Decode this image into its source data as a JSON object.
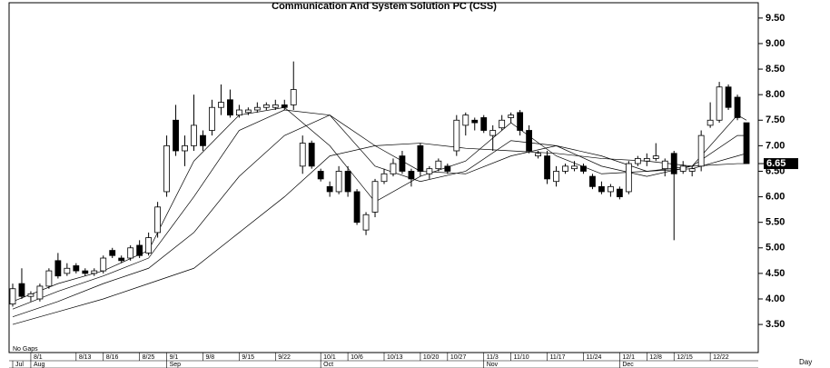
{
  "chart_data": {
    "type": "candlestick",
    "title": "Communication And System Solution PC (CSS)",
    "note": "No Gaps",
    "x_axis_label": "Day",
    "last_value": 6.65,
    "ylim": [
      2.95,
      9.8
    ],
    "xlim": [
      -0.4,
      82.3
    ],
    "yticks": [
      {
        "value": 3.5,
        "label": "3.50"
      },
      {
        "value": 4,
        "label": "4.00"
      },
      {
        "value": 4.5,
        "label": "4.50"
      },
      {
        "value": 5,
        "label": "5.00"
      },
      {
        "value": 5.5,
        "label": "5.50"
      },
      {
        "value": 6,
        "label": "6.00"
      },
      {
        "value": 6.5,
        "label": "6.50"
      },
      {
        "value": 7,
        "label": "7.00"
      },
      {
        "value": 7.5,
        "label": "7.50"
      },
      {
        "value": 8,
        "label": "8.00"
      },
      {
        "value": 8.5,
        "label": "8.50"
      },
      {
        "value": 9,
        "label": "9.00"
      },
      {
        "value": 9.5,
        "label": "9.50"
      }
    ],
    "xticks": [
      {
        "value": 2,
        "label": "8/1"
      },
      {
        "value": 7,
        "label": "8/13"
      },
      {
        "value": 10,
        "label": "8/16"
      },
      {
        "value": 14,
        "label": "8/25"
      },
      {
        "value": 17,
        "label": "9/1"
      },
      {
        "value": 21,
        "label": "9/8"
      },
      {
        "value": 25,
        "label": "9/15"
      },
      {
        "value": 29,
        "label": "9/22"
      },
      {
        "value": 34,
        "label": "10/1"
      },
      {
        "value": 37,
        "label": "10/6"
      },
      {
        "value": 41,
        "label": "10/13"
      },
      {
        "value": 45,
        "label": "10/20"
      },
      {
        "value": 48,
        "label": "10/27"
      },
      {
        "value": 52,
        "label": "11/3"
      },
      {
        "value": 55,
        "label": "11/10"
      },
      {
        "value": 59,
        "label": "11/17"
      },
      {
        "value": 63,
        "label": "11/24"
      },
      {
        "value": 67,
        "label": "12/1"
      },
      {
        "value": 70,
        "label": "12/8"
      },
      {
        "value": 73,
        "label": "12/15"
      },
      {
        "value": 77,
        "label": "12/22"
      }
    ],
    "month_ticks": [
      {
        "value": 0,
        "label": "Jul"
      },
      {
        "value": 2,
        "label": "Aug"
      },
      {
        "value": 17,
        "label": "Sep"
      },
      {
        "value": 34,
        "label": "Oct"
      },
      {
        "value": 52,
        "label": "Nov"
      },
      {
        "value": 67,
        "label": "Dec"
      }
    ],
    "ohlc": [
      [
        3.9,
        4.3,
        3.85,
        4.2
      ],
      [
        4.3,
        4.6,
        4.0,
        4.05
      ],
      [
        4.05,
        4.15,
        3.95,
        4.1
      ],
      [
        4.0,
        4.3,
        3.95,
        4.25
      ],
      [
        4.25,
        4.6,
        4.2,
        4.55
      ],
      [
        4.75,
        4.9,
        4.4,
        4.45
      ],
      [
        4.5,
        4.7,
        4.45,
        4.6
      ],
      [
        4.65,
        4.7,
        4.5,
        4.55
      ],
      [
        4.55,
        4.6,
        4.45,
        4.5
      ],
      [
        4.5,
        4.6,
        4.45,
        4.55
      ],
      [
        4.55,
        4.85,
        4.5,
        4.8
      ],
      [
        4.95,
        5.0,
        4.8,
        4.85
      ],
      [
        4.8,
        4.85,
        4.7,
        4.75
      ],
      [
        4.8,
        5.05,
        4.75,
        5.0
      ],
      [
        5.05,
        5.15,
        4.8,
        4.85
      ],
      [
        4.9,
        5.3,
        4.85,
        5.2
      ],
      [
        5.3,
        5.9,
        5.2,
        5.8
      ],
      [
        6.1,
        7.2,
        6.0,
        7.0
      ],
      [
        7.5,
        7.8,
        6.8,
        6.9
      ],
      [
        6.9,
        7.2,
        6.6,
        7.0
      ],
      [
        7.0,
        8.0,
        6.9,
        7.4
      ],
      [
        7.2,
        7.3,
        6.9,
        7.0
      ],
      [
        7.3,
        7.9,
        7.2,
        7.75
      ],
      [
        7.75,
        8.2,
        7.6,
        7.85
      ],
      [
        7.9,
        8.1,
        7.55,
        7.6
      ],
      [
        7.6,
        7.8,
        7.55,
        7.7
      ],
      [
        7.65,
        7.75,
        7.6,
        7.7
      ],
      [
        7.7,
        7.85,
        7.65,
        7.75
      ],
      [
        7.75,
        7.85,
        7.7,
        7.8
      ],
      [
        7.75,
        7.9,
        7.7,
        7.8
      ],
      [
        7.8,
        7.9,
        7.7,
        7.75
      ],
      [
        7.8,
        8.65,
        7.7,
        8.1
      ],
      [
        6.6,
        7.2,
        6.45,
        7.05
      ],
      [
        7.05,
        7.1,
        6.55,
        6.6
      ],
      [
        6.5,
        6.55,
        6.3,
        6.35
      ],
      [
        6.2,
        6.3,
        6.0,
        6.1
      ],
      [
        6.1,
        6.6,
        6.05,
        6.5
      ],
      [
        6.5,
        6.6,
        6.0,
        6.1
      ],
      [
        6.1,
        6.15,
        5.45,
        5.5
      ],
      [
        5.35,
        5.7,
        5.25,
        5.65
      ],
      [
        5.7,
        6.35,
        5.6,
        6.3
      ],
      [
        6.3,
        6.55,
        6.25,
        6.45
      ],
      [
        6.45,
        6.75,
        6.4,
        6.65
      ],
      [
        6.8,
        6.9,
        6.45,
        6.5
      ],
      [
        6.5,
        6.55,
        6.2,
        6.35
      ],
      [
        7.0,
        7.05,
        6.4,
        6.5
      ],
      [
        6.45,
        6.6,
        6.35,
        6.55
      ],
      [
        6.55,
        6.75,
        6.5,
        6.7
      ],
      [
        6.6,
        6.65,
        6.45,
        6.5
      ],
      [
        6.9,
        7.6,
        6.8,
        7.5
      ],
      [
        7.4,
        7.65,
        7.2,
        7.6
      ],
      [
        7.5,
        7.55,
        7.3,
        7.45
      ],
      [
        7.55,
        7.6,
        7.25,
        7.3
      ],
      [
        7.2,
        7.4,
        6.9,
        7.3
      ],
      [
        7.35,
        7.6,
        7.3,
        7.5
      ],
      [
        7.55,
        7.65,
        7.45,
        7.6
      ],
      [
        7.65,
        7.7,
        7.2,
        7.3
      ],
      [
        7.3,
        7.4,
        6.85,
        6.9
      ],
      [
        6.8,
        6.9,
        6.75,
        6.85
      ],
      [
        6.8,
        6.9,
        6.25,
        6.35
      ],
      [
        6.3,
        6.6,
        6.2,
        6.5
      ],
      [
        6.5,
        6.65,
        6.45,
        6.6
      ],
      [
        6.55,
        6.7,
        6.5,
        6.6
      ],
      [
        6.6,
        6.65,
        6.45,
        6.5
      ],
      [
        6.4,
        6.45,
        6.15,
        6.2
      ],
      [
        6.2,
        6.3,
        6.05,
        6.1
      ],
      [
        6.1,
        6.25,
        6.0,
        6.2
      ],
      [
        6.15,
        6.2,
        5.95,
        6.0
      ],
      [
        6.1,
        6.7,
        6.05,
        6.65
      ],
      [
        6.65,
        6.8,
        6.6,
        6.75
      ],
      [
        6.7,
        6.85,
        6.6,
        6.75
      ],
      [
        6.75,
        7.05,
        6.7,
        6.8
      ],
      [
        6.55,
        6.75,
        6.4,
        6.7
      ],
      [
        6.85,
        6.9,
        5.15,
        6.45
      ],
      [
        6.5,
        6.7,
        6.45,
        6.6
      ],
      [
        6.5,
        6.6,
        6.4,
        6.55
      ],
      [
        6.6,
        7.3,
        6.5,
        7.2
      ],
      [
        7.4,
        7.85,
        7.35,
        7.5
      ],
      [
        7.5,
        8.25,
        7.45,
        8.15
      ],
      [
        8.15,
        8.2,
        7.7,
        7.75
      ],
      [
        7.95,
        8.0,
        7.5,
        7.55
      ],
      [
        7.45,
        7.45,
        6.65,
        6.65
      ]
    ],
    "x": [
      0,
      5,
      10,
      15,
      20,
      25,
      30,
      35,
      40,
      45,
      50,
      55,
      60,
      65,
      70,
      75,
      80,
      81
    ],
    "series": [
      {
        "color": "#000000",
        "values": [
          3.95,
          4.3,
          4.55,
          4.95,
          6.7,
          7.6,
          7.75,
          7.0,
          5.9,
          6.4,
          6.7,
          7.45,
          6.8,
          6.45,
          6.5,
          6.6,
          7.6,
          7.5
        ]
      },
      {
        "color": "#000000",
        "values": [
          3.8,
          4.15,
          4.45,
          4.8,
          6.0,
          7.3,
          7.7,
          7.6,
          6.6,
          6.3,
          6.5,
          7.1,
          7.0,
          6.6,
          6.4,
          6.6,
          7.2,
          7.2
        ]
      },
      {
        "color": "#000000",
        "values": [
          3.65,
          3.95,
          4.3,
          4.6,
          5.3,
          6.4,
          7.2,
          7.6,
          7.0,
          6.5,
          6.45,
          6.8,
          7.0,
          6.8,
          6.5,
          6.55,
          6.8,
          6.85
        ]
      },
      {
        "color": "#000000",
        "values": [
          3.5,
          3.75,
          4.0,
          4.3,
          4.6,
          5.3,
          6.0,
          6.8,
          7.0,
          7.05,
          6.95,
          6.9,
          6.85,
          6.75,
          6.7,
          6.6,
          6.65,
          6.65
        ]
      }
    ]
  }
}
